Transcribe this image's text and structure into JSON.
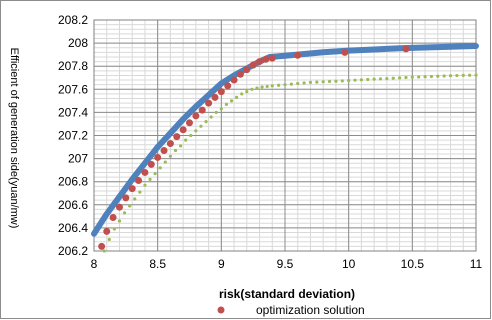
{
  "chart_data": {
    "type": "scatter",
    "xlabel": "risk(standard deviation)",
    "ylabel": "Efficient of generation side(yuan/mw)",
    "xlim": [
      8,
      11
    ],
    "ylim": [
      206.2,
      208.2
    ],
    "x_ticks": [
      "8",
      "8.5",
      "9",
      "9.5",
      "10",
      "10.5",
      "11"
    ],
    "y_ticks": [
      "206.2",
      "206.4",
      "206.6",
      "206.8",
      "207",
      "207.2",
      "207.4",
      "207.6",
      "207.8",
      "208",
      "208.2"
    ],
    "grid": "major and minor",
    "legend_position": "bottom",
    "series": [
      {
        "style": "thick-line",
        "color": "#4f81bd",
        "x": [
          8.0,
          8.1,
          8.2,
          8.3,
          8.4,
          8.5,
          8.6,
          8.7,
          8.8,
          8.9,
          9.0,
          9.1,
          9.2,
          9.3,
          9.38,
          9.5,
          9.6,
          9.8,
          10.0,
          10.2,
          10.4,
          10.6,
          10.8,
          11.0
        ],
        "y": [
          206.35,
          206.52,
          206.67,
          206.82,
          206.96,
          207.1,
          207.22,
          207.34,
          207.45,
          207.55,
          207.65,
          207.72,
          207.78,
          207.84,
          207.88,
          207.89,
          207.9,
          207.92,
          207.935,
          207.945,
          207.955,
          207.962,
          207.968,
          207.975
        ]
      },
      {
        "name": "optimization solution",
        "style": "markers",
        "color": "#c0504d",
        "x": [
          8.06,
          8.1,
          8.15,
          8.2,
          8.25,
          8.3,
          8.35,
          8.4,
          8.45,
          8.5,
          8.55,
          8.6,
          8.65,
          8.7,
          8.75,
          8.8,
          8.85,
          8.9,
          8.95,
          9.0,
          9.05,
          9.1,
          9.15,
          9.2,
          9.25,
          9.3,
          9.35,
          9.4,
          9.6,
          9.97,
          10.45
        ],
        "y": [
          206.24,
          206.37,
          206.49,
          206.58,
          206.66,
          206.74,
          206.81,
          206.88,
          206.95,
          207.01,
          207.07,
          207.13,
          207.19,
          207.25,
          207.31,
          207.37,
          207.42,
          207.48,
          207.53,
          207.58,
          207.63,
          207.68,
          207.73,
          207.77,
          207.81,
          207.84,
          207.86,
          207.87,
          207.895,
          207.92,
          207.95
        ]
      },
      {
        "style": "small-dots",
        "color": "#9bbb59",
        "x": [
          8.08,
          8.12,
          8.16,
          8.2,
          8.24,
          8.28,
          8.32,
          8.36,
          8.4,
          8.44,
          8.48,
          8.52,
          8.56,
          8.6,
          8.64,
          8.68,
          8.72,
          8.76,
          8.8,
          8.84,
          8.88,
          8.92,
          8.96,
          9.0,
          9.04,
          9.08,
          9.12,
          9.16,
          9.2,
          9.24,
          9.28,
          9.32,
          9.36,
          9.4,
          9.45,
          9.5,
          9.55,
          9.6,
          9.65,
          9.7,
          9.75,
          9.8,
          9.85,
          9.9,
          9.95,
          10.0,
          10.05,
          10.1,
          10.15,
          10.2,
          10.25,
          10.3,
          10.35,
          10.4,
          10.45,
          10.5,
          10.55,
          10.6,
          10.65,
          10.7,
          10.75,
          10.8,
          10.85,
          10.9,
          10.95,
          11.0
        ],
        "y": [
          206.2,
          206.3,
          206.39,
          206.46,
          206.53,
          206.59,
          206.65,
          206.71,
          206.77,
          206.82,
          206.87,
          206.92,
          206.97,
          207.02,
          207.07,
          207.11,
          207.16,
          207.2,
          207.24,
          207.28,
          207.32,
          207.36,
          207.4,
          207.43,
          207.47,
          207.5,
          207.53,
          207.56,
          207.58,
          207.6,
          207.61,
          207.62,
          207.625,
          207.63,
          207.635,
          207.64,
          207.645,
          207.65,
          207.655,
          207.66,
          207.662,
          207.665,
          207.668,
          207.67,
          207.673,
          207.676,
          207.679,
          207.682,
          207.685,
          207.688,
          207.69,
          207.693,
          207.696,
          207.699,
          207.702,
          207.705,
          207.707,
          207.709,
          207.711,
          207.713,
          207.715,
          207.717,
          207.719,
          207.721,
          207.722,
          207.723
        ]
      }
    ]
  }
}
